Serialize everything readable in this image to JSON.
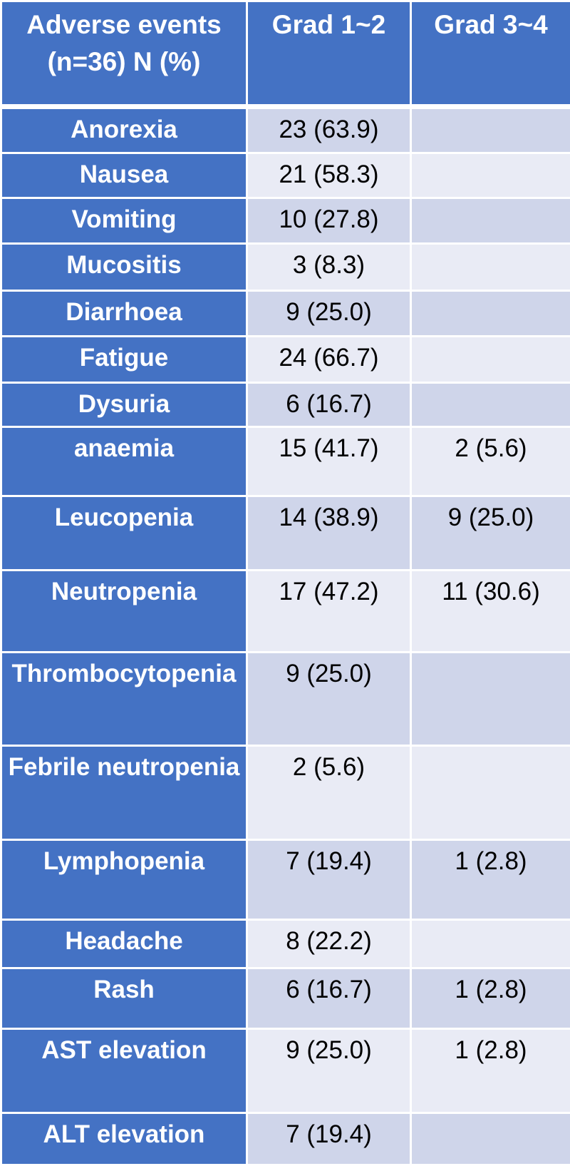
{
  "table": {
    "headers": [
      "Adverse events (n=36) N (%)",
      "Grad 1~2",
      "Grad 3~4"
    ],
    "rows": [
      {
        "event": "Anorexia",
        "grade_1_2": "23 (63.9)",
        "grade_3_4": ""
      },
      {
        "event": "Nausea",
        "grade_1_2": "21 (58.3)",
        "grade_3_4": ""
      },
      {
        "event": "Vomiting",
        "grade_1_2": "10 (27.8)",
        "grade_3_4": ""
      },
      {
        "event": "Mucositis",
        "grade_1_2": "3 (8.3)",
        "grade_3_4": ""
      },
      {
        "event": "Diarrhoea",
        "grade_1_2": "9 (25.0)",
        "grade_3_4": ""
      },
      {
        "event": "Fatigue",
        "grade_1_2": "24 (66.7)",
        "grade_3_4": ""
      },
      {
        "event": "Dysuria",
        "grade_1_2": "6 (16.7)",
        "grade_3_4": ""
      },
      {
        "event": "anaemia",
        "grade_1_2": "15 (41.7)",
        "grade_3_4": "2 (5.6)"
      },
      {
        "event": "Leucopenia",
        "grade_1_2": "14 (38.9)",
        "grade_3_4": "9 (25.0)"
      },
      {
        "event": "Neutropenia",
        "grade_1_2": "17 (47.2)",
        "grade_3_4": "11 (30.6)"
      },
      {
        "event": "Thrombocytopenia",
        "grade_1_2": "9 (25.0)",
        "grade_3_4": ""
      },
      {
        "event": "Febrile neutropenia",
        "grade_1_2": "2 (5.6)",
        "grade_3_4": ""
      },
      {
        "event": "Lymphopenia",
        "grade_1_2": "7 (19.4)",
        "grade_3_4": "1 (2.8)"
      },
      {
        "event": "Headache",
        "grade_1_2": "8 (22.2)",
        "grade_3_4": ""
      },
      {
        "event": "Rash",
        "grade_1_2": "6 (16.7)",
        "grade_3_4": "1 (2.8)"
      },
      {
        "event": "AST elevation",
        "grade_1_2": "9 (25.0)",
        "grade_3_4": "1 (2.8)"
      },
      {
        "event": "ALT elevation",
        "grade_1_2": "7 (19.4)",
        "grade_3_4": ""
      }
    ]
  },
  "colors": {
    "header_blue": "#4472c4",
    "band_dark": "#cfd5ea",
    "band_light": "#e9ebf5"
  }
}
